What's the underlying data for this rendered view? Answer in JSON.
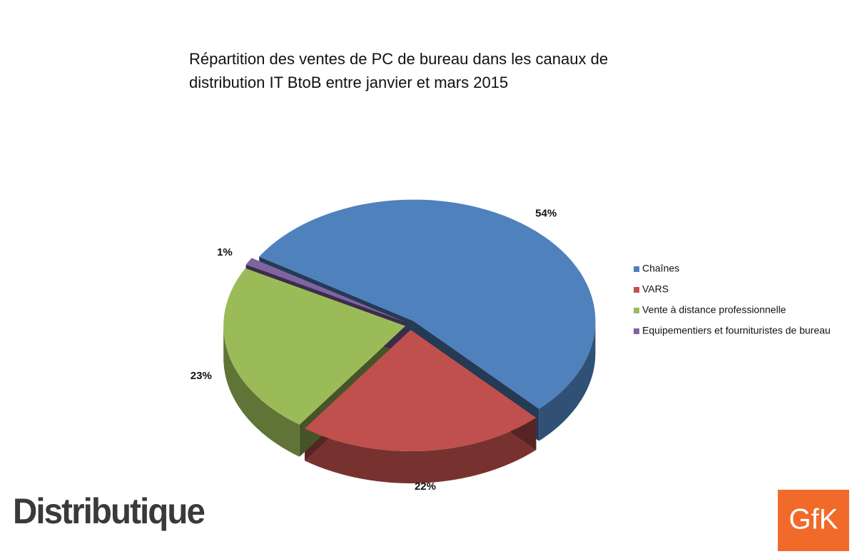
{
  "chart_data": {
    "type": "pie3d",
    "title": "Répartition des ventes de PC de bureau dans les canaux de distribution IT BtoB entre janvier et mars 2015",
    "categories": [
      "Chaînes",
      "VARS",
      "Vente à distance professionnelle",
      "Equipementiers et fournituristes de bureau"
    ],
    "values": [
      54,
      22,
      23,
      1
    ],
    "value_labels": [
      "54%",
      "22%",
      "23%",
      "1%"
    ],
    "colors": [
      "#4f81bd",
      "#c0504d",
      "#9bbb59",
      "#8064a2"
    ],
    "legend": "right"
  },
  "logos": [
    "Distributique",
    "GfK"
  ]
}
